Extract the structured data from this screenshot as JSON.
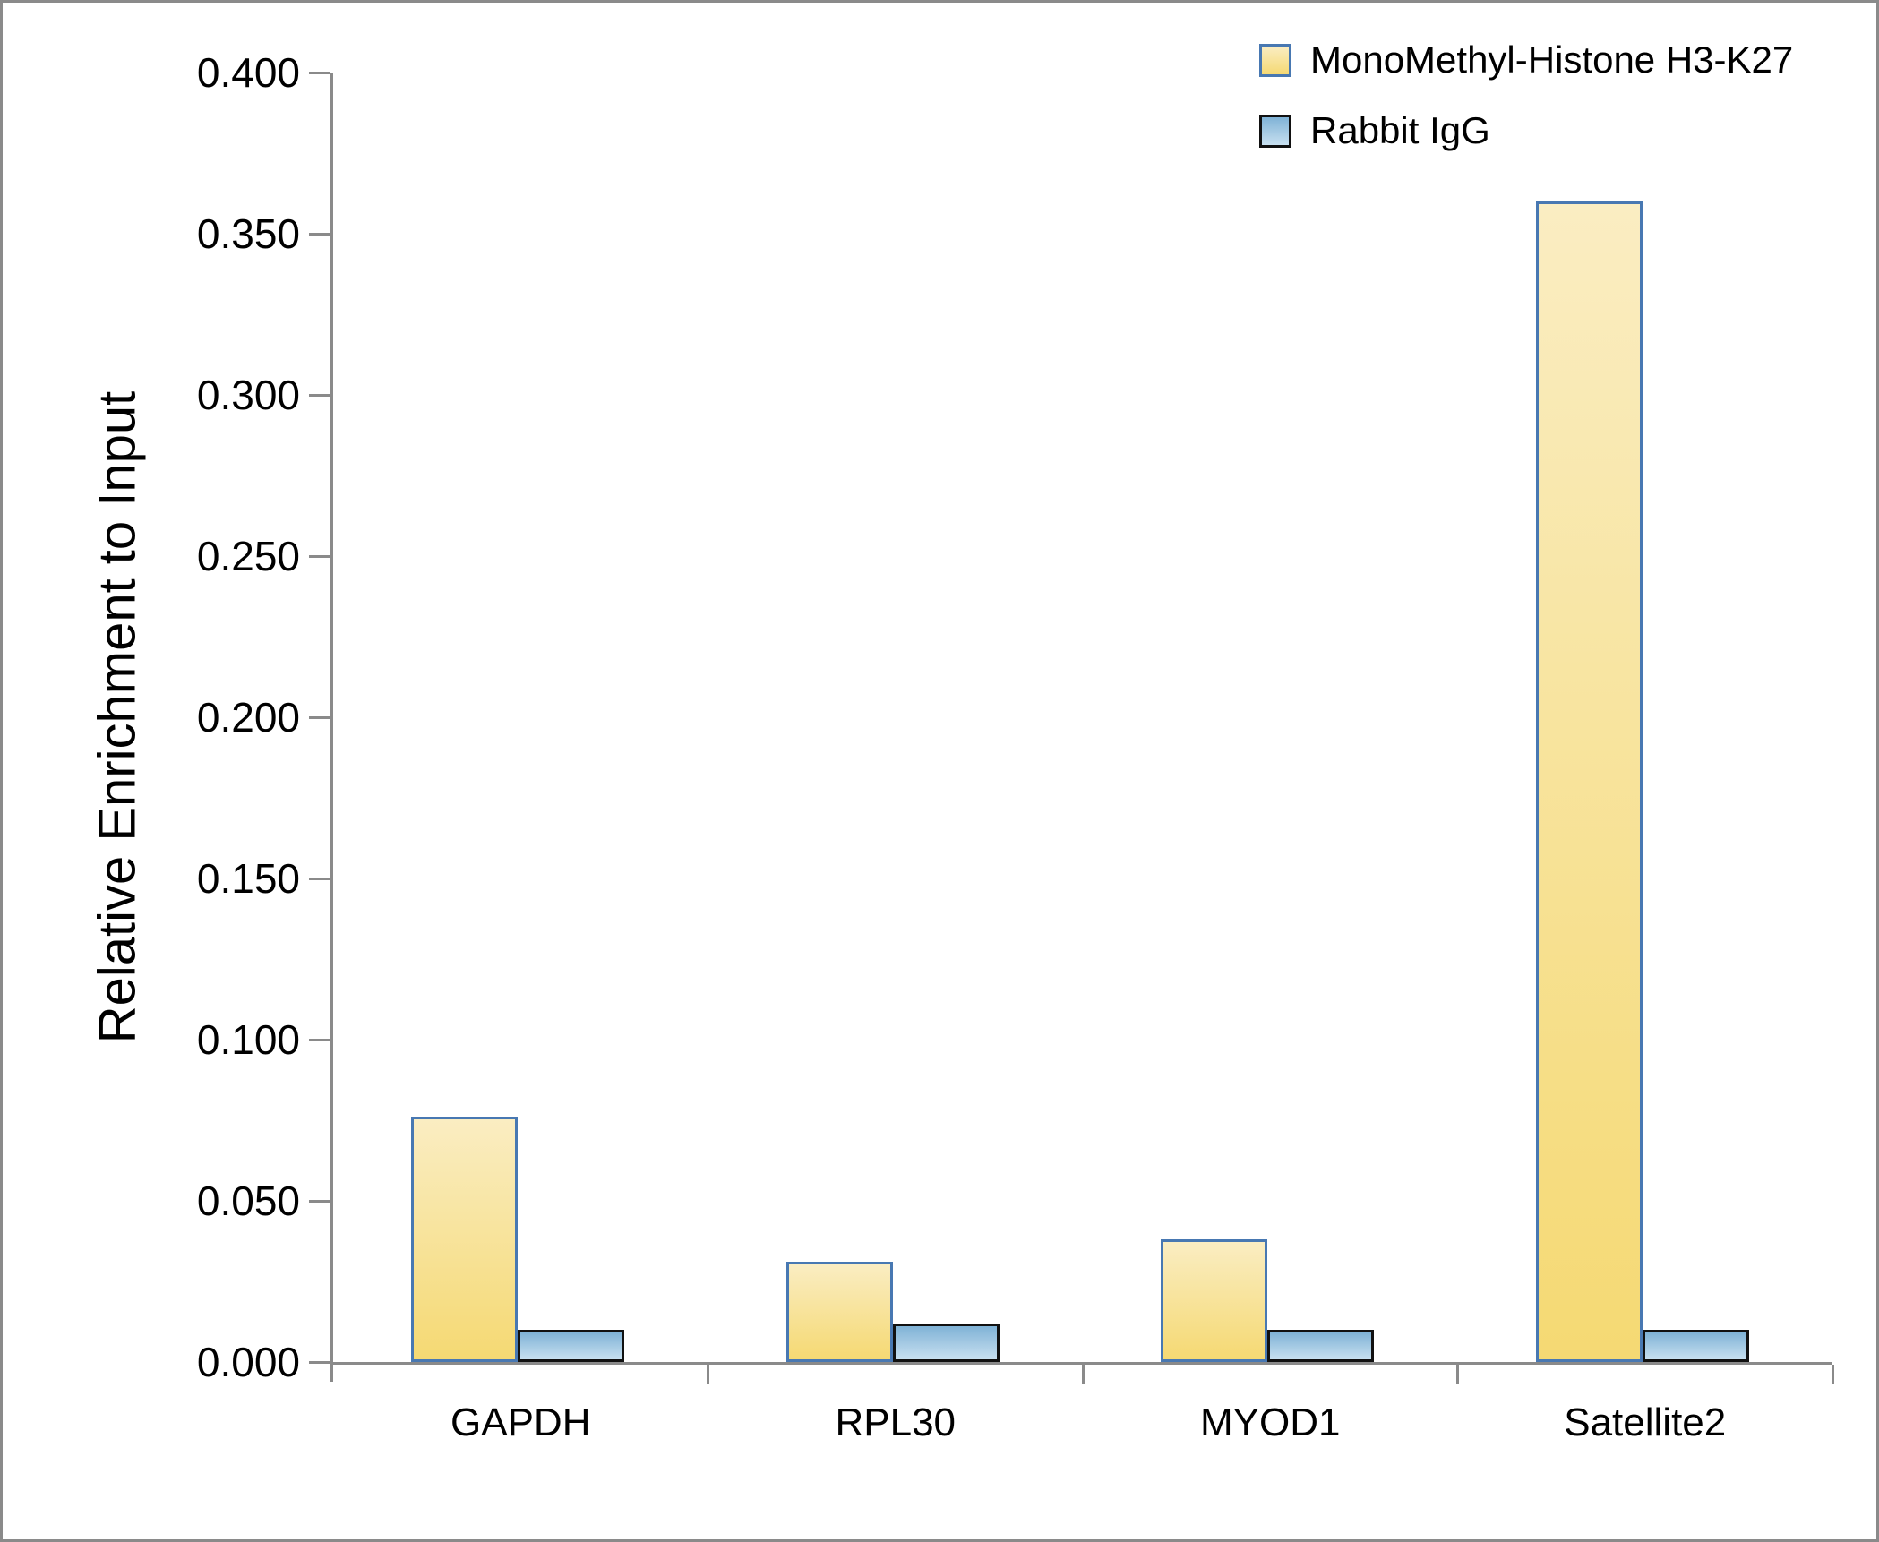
{
  "chart_data": {
    "type": "bar",
    "title": "",
    "xlabel": "",
    "ylabel": "Relative Enrichment to Input",
    "categories": [
      "GAPDH",
      "RPL30",
      "MYOD1",
      "Satellite2"
    ],
    "series": [
      {
        "name": "MonoMethyl-Histone H3-K27",
        "values": [
          0.076,
          0.031,
          0.038,
          0.36
        ],
        "fill_top": "#FAEDC2",
        "fill_bottom": "#F5D973",
        "border_color": "#4878B2"
      },
      {
        "name": "Rabbit IgG",
        "values": [
          0.01,
          0.012,
          0.01,
          0.01
        ],
        "fill_top": "#7FB2D6",
        "fill_bottom": "#C8E0F0",
        "border_color": "#111111"
      }
    ],
    "ylim": [
      0.0,
      0.4
    ],
    "ytick_step": 0.05,
    "ytick_labels": [
      "0.400",
      "0.350",
      "0.300",
      "0.250",
      "0.200",
      "0.150",
      "0.100",
      "0.050",
      "0.000"
    ],
    "grid": false,
    "legend_position": "top-right",
    "axis_color": "#8a8a8a",
    "background_color": "#ffffff"
  }
}
